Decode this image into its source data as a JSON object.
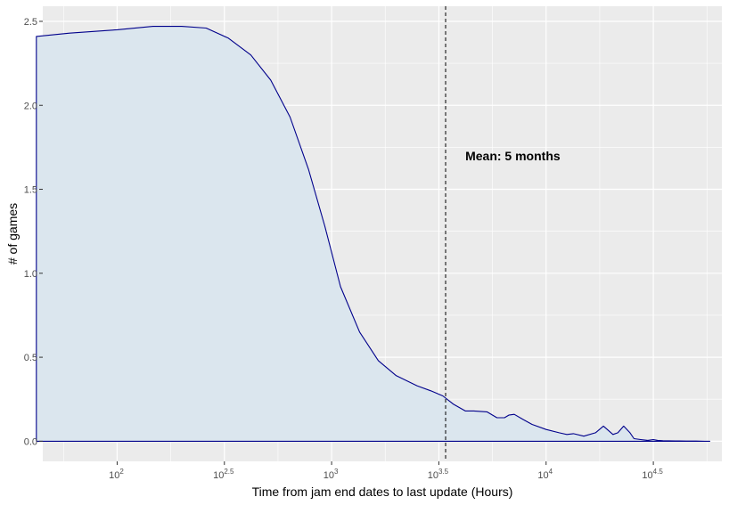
{
  "chart_data": {
    "type": "area",
    "title": "",
    "xlabel": "Time from jam end dates to last update (Hours)",
    "ylabel": "# of games",
    "x_scale": "log10",
    "x_ticks": [
      {
        "value": 100,
        "base": "10",
        "exp": "2"
      },
      {
        "value": 316.2,
        "base": "10",
        "exp": "2.5"
      },
      {
        "value": 1000,
        "base": "10",
        "exp": "3"
      },
      {
        "value": 3162,
        "base": "10",
        "exp": "3.5"
      },
      {
        "value": 10000,
        "base": "10",
        "exp": "4"
      },
      {
        "value": 31623,
        "base": "10",
        "exp": "4.5"
      }
    ],
    "y_ticks": [
      {
        "value": 0.0,
        "label": "0.0"
      },
      {
        "value": 0.5,
        "label": "0.5"
      },
      {
        "value": 1.0,
        "label": "1.0"
      },
      {
        "value": 1.5,
        "label": "1.5"
      },
      {
        "value": 2.0,
        "label": "2.0"
      },
      {
        "value": 2.5,
        "label": "2.5"
      }
    ],
    "xlim": [
      45,
      66000
    ],
    "ylim": [
      -0.12,
      2.59
    ],
    "grid": true,
    "series": [
      {
        "x": [
          42,
          60,
          100,
          147,
          200,
          260,
          330,
          420,
          520,
          640,
          780,
          930,
          1100,
          1350,
          1650,
          2000,
          2500,
          2900,
          3300,
          3700,
          4200,
          4600,
          5300,
          5900,
          6400,
          6700,
          7100,
          7800,
          8600,
          10000,
          11500,
          12500,
          13400,
          15000,
          17000,
          18500,
          20500,
          21600,
          23000,
          24600,
          25700,
          27600,
          29800,
          31600,
          33100,
          35000,
          40000,
          45000,
          50000,
          55000,
          58000
        ],
        "y": [
          2.41,
          2.43,
          2.45,
          2.47,
          2.47,
          2.46,
          2.4,
          2.3,
          2.15,
          1.93,
          1.62,
          1.28,
          0.92,
          0.65,
          0.48,
          0.39,
          0.33,
          0.3,
          0.27,
          0.22,
          0.18,
          0.18,
          0.175,
          0.14,
          0.14,
          0.155,
          0.16,
          0.13,
          0.1,
          0.07,
          0.05,
          0.04,
          0.045,
          0.03,
          0.05,
          0.09,
          0.04,
          0.05,
          0.09,
          0.05,
          0.015,
          0.01,
          0.005,
          0.01,
          0.005,
          0.003,
          0.002,
          0.001,
          0.001,
          0.0,
          0.0
        ]
      }
    ],
    "mean_line_x": 3400,
    "annotations": [
      {
        "text": "Mean:  5  months",
        "x": 4200,
        "y": 1.7
      }
    ],
    "colors": {
      "panel_bg": "#ebebeb",
      "grid": "#ffffff",
      "line": "#00008b",
      "fill": "#dbe6ee",
      "mean_line": "#000000"
    }
  }
}
